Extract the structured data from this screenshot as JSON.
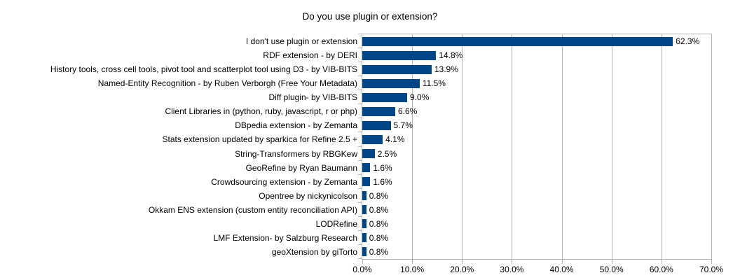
{
  "chart_data": {
    "type": "bar",
    "orientation": "horizontal",
    "title": "Do you use plugin or extension?",
    "categories": [
      "I don't use plugin or extension",
      "RDF extension - by DERI",
      "History tools, cross cell tools, pivot tool and scatterplot tool using D3 - by VIB-BITS",
      "Named-Entity Recognition - by Ruben Verborgh (Free Your Metadata)",
      "Diff plugin- by VIB-BITS",
      "Client Libraries in (python, ruby, javascript, r or php)",
      "DBpedia extension - by Zemanta",
      "Stats extension updated by sparkica for Refine 2.5 +",
      "String-Transformers by RBGKew",
      "GeoRefine by Ryan Baumann",
      "Crowdsourcing extension - by Zemanta",
      "Opentree by nickynicolson",
      "Okkam ENS extension (custom entity reconciliation API)",
      "LODRefine",
      "LMF Extension- by Salzburg Research",
      "geoXtension by giTorto"
    ],
    "values": [
      62.3,
      14.8,
      13.9,
      11.5,
      9.0,
      6.6,
      5.7,
      4.1,
      2.5,
      1.6,
      1.6,
      0.8,
      0.8,
      0.8,
      0.8,
      0.8
    ],
    "value_labels": [
      "62.3%",
      "14.8%",
      "13.9%",
      "11.5%",
      "9.0%",
      "6.6%",
      "5.7%",
      "4.1%",
      "2.5%",
      "1.6%",
      "1.6%",
      "0.8%",
      "0.8%",
      "0.8%",
      "0.8%",
      "0.8%"
    ],
    "x_tick_labels": [
      "0.0%",
      "10.0%",
      "20.0%",
      "30.0%",
      "40.0%",
      "50.0%",
      "60.0%",
      "70.0%"
    ],
    "x_tick_values": [
      0,
      10,
      20,
      30,
      40,
      50,
      60,
      70
    ],
    "xlim": [
      0,
      70
    ],
    "xlabel": "",
    "ylabel": "",
    "grid": "vertical",
    "legend_position": "none",
    "colors": {
      "bar": "#004586",
      "axis": "#b3b3b3",
      "grid": "#b3b3b3",
      "text": "#000000",
      "background": "#ffffff"
    }
  }
}
